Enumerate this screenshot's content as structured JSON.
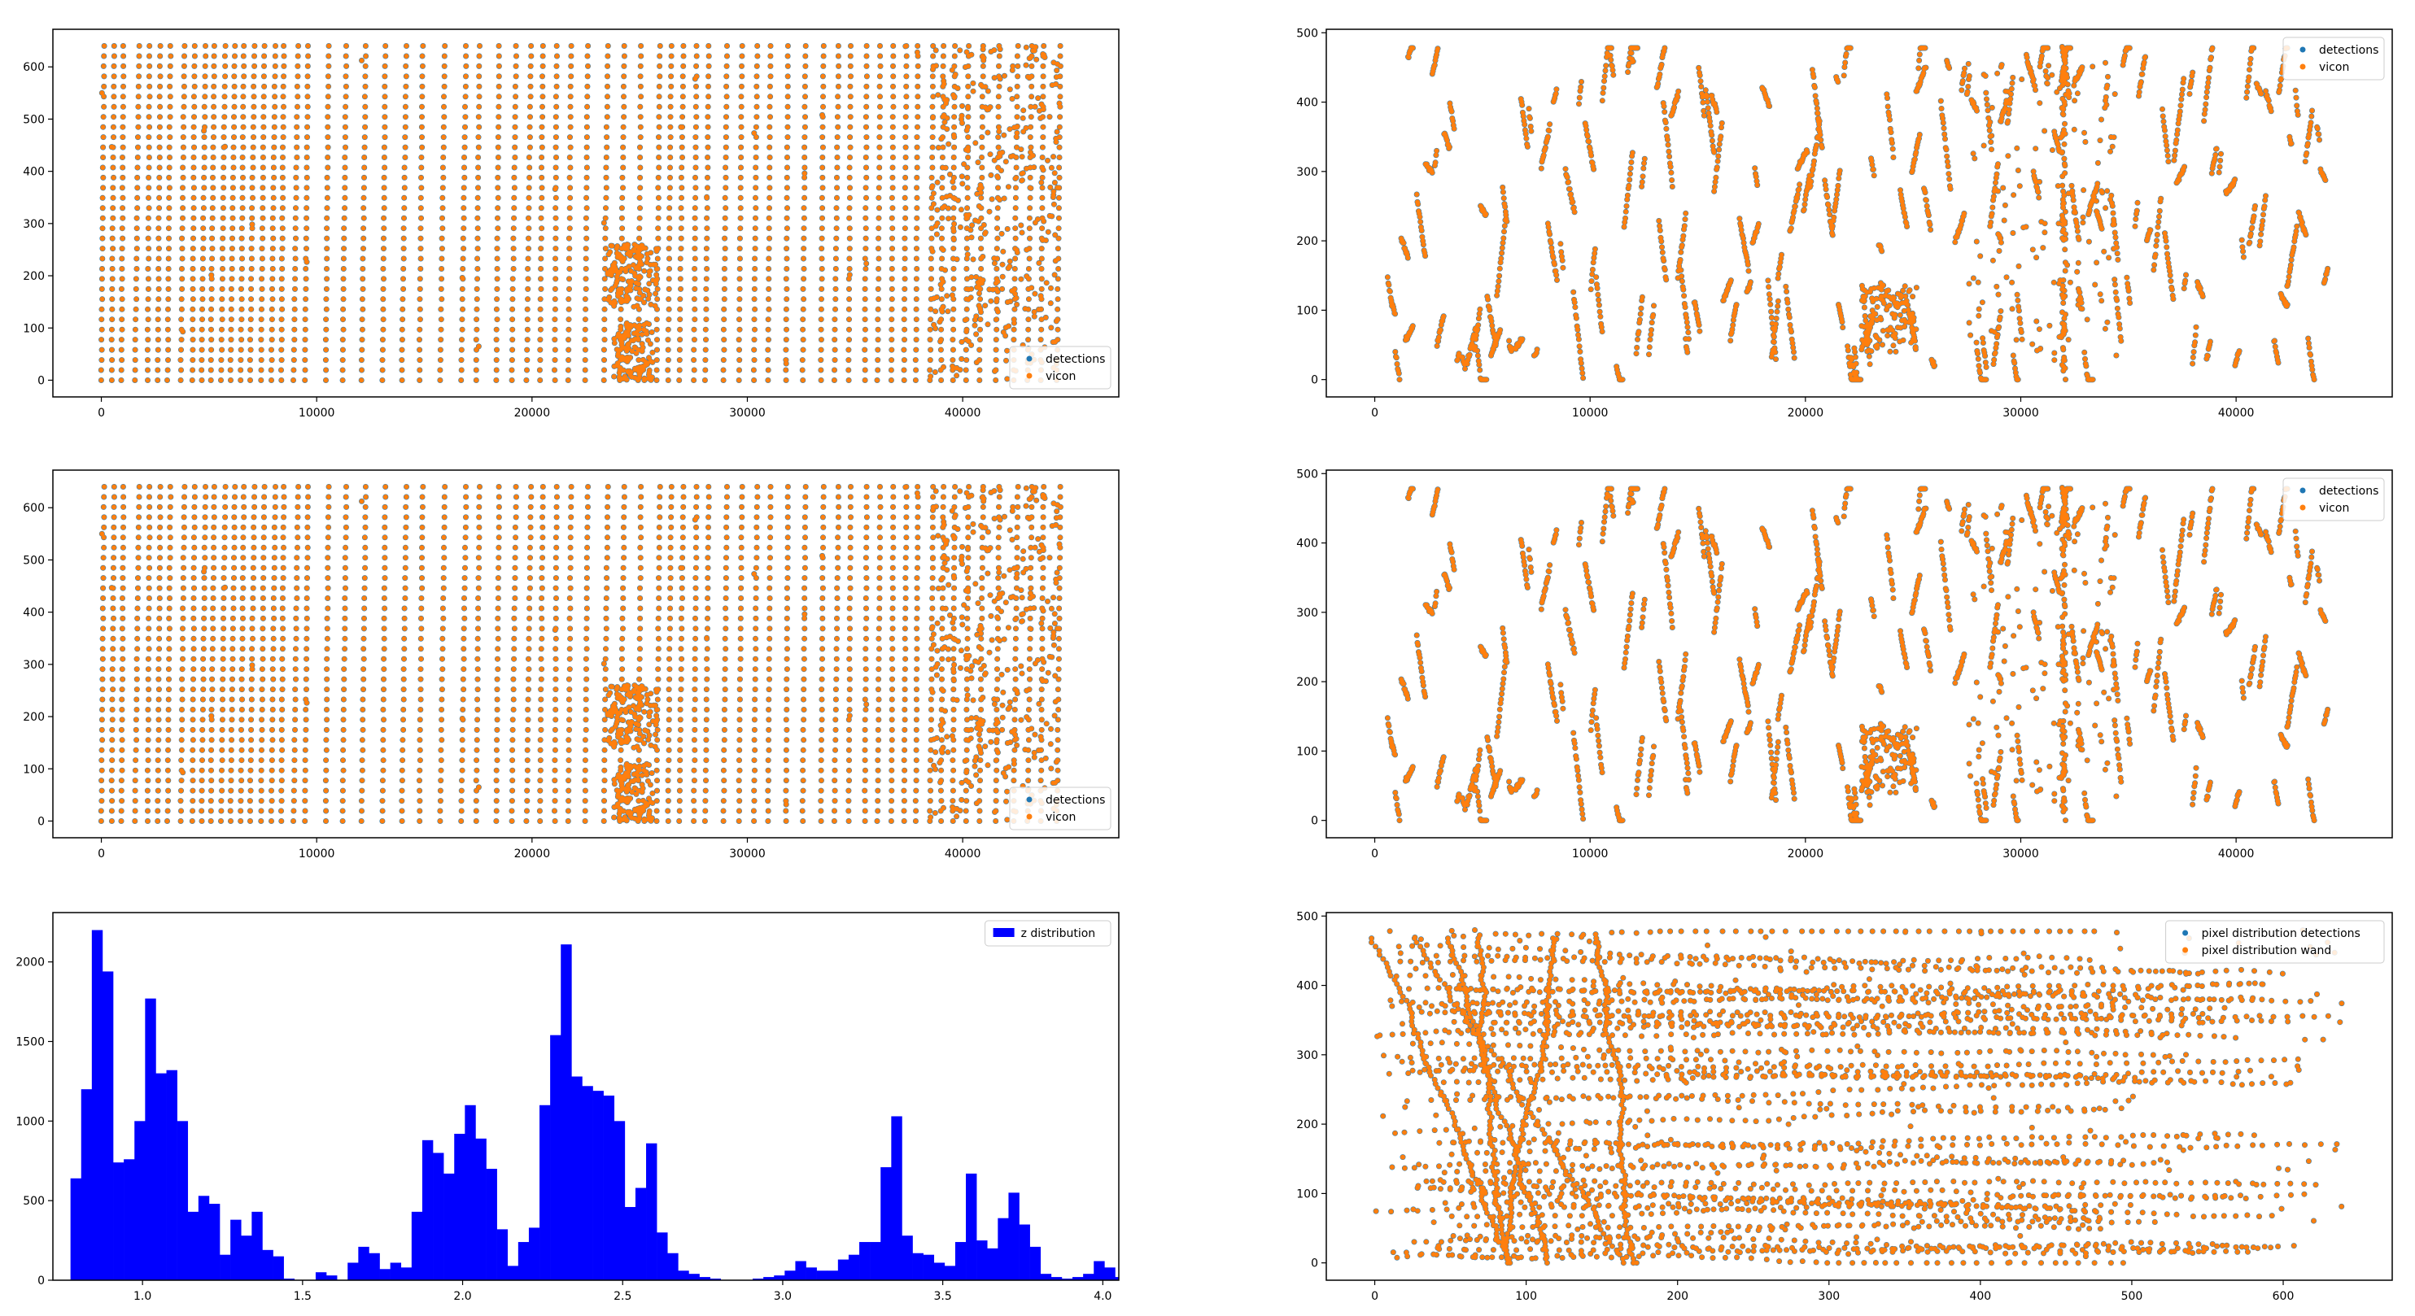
{
  "figure": {
    "colors": {
      "detections": "#1f77b4",
      "vicon": "#ff7f0e",
      "histogram": "#0000ff",
      "axis": "#000000",
      "background": "#ffffff"
    }
  },
  "chart_data": [
    {
      "id": "top-left",
      "type": "scatter",
      "title": "",
      "xlabel": "",
      "ylabel": "",
      "xlim": [
        -2250,
        47250
      ],
      "ylim": [
        -32,
        672
      ],
      "xticks": [
        0,
        10000,
        20000,
        30000,
        40000
      ],
      "xtick_labels": [
        "0",
        "10000",
        "20000",
        "30000",
        "40000"
      ],
      "yticks": [
        0,
        100,
        200,
        300,
        400,
        500,
        600
      ],
      "ytick_labels": [
        "0",
        "100",
        "200",
        "300",
        "400",
        "500",
        "600"
      ],
      "legend": {
        "loc": "lower right",
        "entries": [
          "detections",
          "vicon"
        ]
      },
      "series": [
        {
          "name": "detections",
          "color": "#1f77b4",
          "pattern": "sweeps-640",
          "seed": 11
        },
        {
          "name": "vicon",
          "color": "#ff7f0e",
          "pattern": "sweeps-640",
          "seed": 11
        }
      ]
    },
    {
      "id": "top-right",
      "type": "scatter",
      "title": "",
      "xlabel": "",
      "ylabel": "",
      "xlim": [
        -2250,
        47250
      ],
      "ylim": [
        -25,
        505
      ],
      "xticks": [
        0,
        10000,
        20000,
        30000,
        40000
      ],
      "xtick_labels": [
        "0",
        "10000",
        "20000",
        "30000",
        "40000"
      ],
      "yticks": [
        0,
        100,
        200,
        300,
        400,
        500
      ],
      "ytick_labels": [
        "0",
        "100",
        "200",
        "300",
        "400",
        "500"
      ],
      "legend": {
        "loc": "upper right",
        "entries": [
          "detections",
          "vicon"
        ]
      },
      "series": [
        {
          "name": "detections",
          "color": "#1f77b4",
          "pattern": "segments-480",
          "seed": 23
        },
        {
          "name": "vicon",
          "color": "#ff7f0e",
          "pattern": "segments-480",
          "seed": 23
        }
      ]
    },
    {
      "id": "middle-left",
      "type": "scatter",
      "title": "",
      "xlabel": "",
      "ylabel": "",
      "xlim": [
        -2250,
        47250
      ],
      "ylim": [
        -32,
        672
      ],
      "xticks": [
        0,
        10000,
        20000,
        30000,
        40000
      ],
      "xtick_labels": [
        "0",
        "10000",
        "20000",
        "30000",
        "40000"
      ],
      "yticks": [
        0,
        100,
        200,
        300,
        400,
        500,
        600
      ],
      "ytick_labels": [
        "0",
        "100",
        "200",
        "300",
        "400",
        "500",
        "600"
      ],
      "legend": {
        "loc": "lower right",
        "entries": [
          "detections",
          "vicon"
        ]
      },
      "series": [
        {
          "name": "detections",
          "color": "#1f77b4",
          "pattern": "sweeps-640",
          "seed": 11
        },
        {
          "name": "vicon",
          "color": "#ff7f0e",
          "pattern": "sweeps-640",
          "seed": 11
        }
      ]
    },
    {
      "id": "middle-right",
      "type": "scatter",
      "title": "",
      "xlabel": "",
      "ylabel": "",
      "xlim": [
        -2250,
        47250
      ],
      "ylim": [
        -25,
        505
      ],
      "xticks": [
        0,
        10000,
        20000,
        30000,
        40000
      ],
      "xtick_labels": [
        "0",
        "10000",
        "20000",
        "30000",
        "40000"
      ],
      "yticks": [
        0,
        100,
        200,
        300,
        400,
        500
      ],
      "ytick_labels": [
        "0",
        "100",
        "200",
        "300",
        "400",
        "500"
      ],
      "legend": {
        "loc": "upper right",
        "entries": [
          "detections",
          "vicon"
        ]
      },
      "series": [
        {
          "name": "detections",
          "color": "#1f77b4",
          "pattern": "segments-480",
          "seed": 23
        },
        {
          "name": "vicon",
          "color": "#ff7f0e",
          "pattern": "segments-480",
          "seed": 23
        }
      ]
    },
    {
      "id": "bottom-left",
      "type": "bar",
      "title": "",
      "xlabel": "",
      "ylabel": "",
      "xlim": [
        0.72,
        4.05
      ],
      "ylim": [
        0,
        2310
      ],
      "xticks": [
        1.0,
        1.5,
        2.0,
        2.5,
        3.0,
        3.5,
        4.0
      ],
      "xtick_labels": [
        "1.0",
        "1.5",
        "2.0",
        "2.5",
        "3.0",
        "3.5",
        "4.0"
      ],
      "yticks": [
        0,
        500,
        1000,
        1500,
        2000
      ],
      "ytick_labels": [
        "0",
        "500",
        "1000",
        "1500",
        "2000"
      ],
      "legend": {
        "loc": "upper right",
        "entries": [
          "z distribution"
        ]
      },
      "bins": {
        "start": 0.775,
        "width": 0.0333
      },
      "series": [
        {
          "name": "z distribution",
          "color": "#0000ff",
          "values": [
            640,
            1200,
            2200,
            1940,
            740,
            760,
            1000,
            1770,
            1300,
            1320,
            1000,
            430,
            530,
            480,
            160,
            380,
            280,
            430,
            190,
            150,
            10,
            0,
            0,
            50,
            30,
            0,
            110,
            210,
            170,
            70,
            110,
            80,
            430,
            880,
            800,
            670,
            920,
            1100,
            890,
            700,
            320,
            90,
            240,
            330,
            1100,
            1540,
            2110,
            1280,
            1220,
            1190,
            1160,
            1000,
            460,
            580,
            860,
            300,
            170,
            60,
            40,
            20,
            10,
            0,
            0,
            0,
            10,
            20,
            30,
            60,
            120,
            80,
            60,
            60,
            130,
            160,
            240,
            240,
            710,
            1030,
            280,
            170,
            160,
            110,
            90,
            240,
            670,
            250,
            200,
            390,
            550,
            350,
            210,
            40,
            20,
            10,
            20,
            40,
            120,
            80,
            20
          ]
        }
      ]
    },
    {
      "id": "bottom-right",
      "type": "scatter",
      "title": "",
      "xlabel": "",
      "ylabel": "",
      "xlim": [
        -32,
        672
      ],
      "ylim": [
        -25,
        505
      ],
      "xticks": [
        0,
        100,
        200,
        300,
        400,
        500,
        600
      ],
      "xtick_labels": [
        "0",
        "100",
        "200",
        "300",
        "400",
        "500",
        "600"
      ],
      "yticks": [
        0,
        100,
        200,
        300,
        400,
        500
      ],
      "ytick_labels": [
        "0",
        "100",
        "200",
        "300",
        "400",
        "500"
      ],
      "legend": {
        "loc": "upper right",
        "entries": [
          "pixel distribution detections",
          "pixel distribution wand"
        ]
      },
      "series": [
        {
          "name": "pixel distribution detections",
          "color": "#1f77b4",
          "pattern": "horizontal-tracks",
          "seed": 37
        },
        {
          "name": "pixel distribution wand",
          "color": "#ff7f0e",
          "pattern": "horizontal-tracks",
          "seed": 37
        }
      ]
    }
  ]
}
